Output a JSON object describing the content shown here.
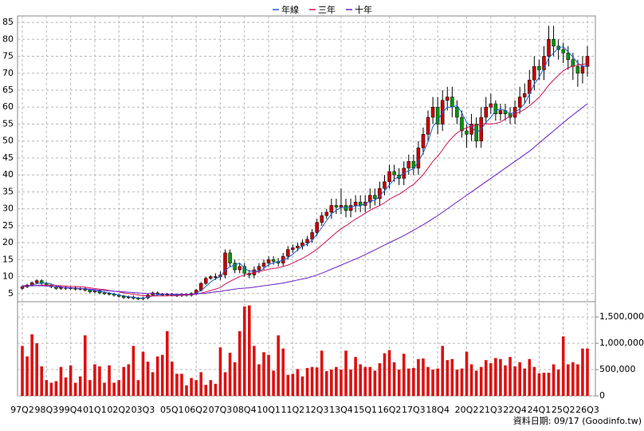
{
  "chart_data": {
    "type": "candlestick",
    "legend": "top",
    "grid": true,
    "up_color": "#cc0000",
    "down_color": "#009900",
    "categories": [
      "97Q2",
      null,
      null,
      null,
      null,
      "98Q3",
      null,
      null,
      null,
      null,
      "99Q4",
      null,
      null,
      null,
      null,
      "01Q1",
      null,
      null,
      null,
      null,
      "02Q2",
      null,
      null,
      null,
      null,
      "03Q3",
      null,
      null,
      null,
      null,
      null,
      "05Q1",
      null,
      null,
      null,
      null,
      "06Q2",
      null,
      null,
      null,
      null,
      "07Q3",
      null,
      null,
      null,
      null,
      "08Q4",
      null,
      null,
      null,
      null,
      "10Q1",
      null,
      null,
      null,
      null,
      "11Q2",
      null,
      null,
      null,
      null,
      "12Q3",
      null,
      null,
      null,
      null,
      "13Q4",
      null,
      null,
      null,
      null,
      "15Q1",
      null,
      null,
      null,
      null,
      "16Q2",
      null,
      null,
      null,
      null,
      "17Q3",
      null,
      null,
      null,
      null,
      "18Q4",
      null,
      null,
      null,
      null,
      null,
      "20Q2",
      null,
      null,
      null,
      null,
      "21Q3",
      null,
      null,
      null,
      null,
      "22Q4",
      null,
      null,
      null,
      null,
      "24Q1",
      null,
      null,
      null,
      null,
      "25Q2",
      null,
      null,
      null,
      null,
      "26Q3"
    ],
    "ohlc": [
      [
        6.5,
        7.4,
        6.1,
        7.0
      ],
      [
        7.0,
        7.9,
        6.6,
        7.5
      ],
      [
        7.5,
        8.6,
        7.1,
        8.2
      ],
      [
        8.2,
        9.2,
        7.8,
        8.8
      ],
      [
        8.8,
        9.2,
        7.6,
        8.0
      ],
      [
        8.0,
        8.4,
        7.1,
        7.5
      ],
      [
        7.5,
        7.9,
        6.6,
        7.0
      ],
      [
        7.0,
        7.4,
        6.1,
        6.5
      ],
      [
        6.5,
        7.2,
        6.1,
        6.8
      ],
      [
        6.8,
        7.2,
        6.1,
        6.5
      ],
      [
        6.5,
        7.1,
        6.1,
        6.7
      ],
      [
        6.7,
        7.1,
        5.9,
        6.3
      ],
      [
        6.3,
        6.9,
        5.9,
        6.5
      ],
      [
        6.5,
        6.9,
        5.6,
        6.0
      ],
      [
        6.0,
        6.4,
        5.1,
        5.5
      ],
      [
        5.5,
        6.2,
        5.1,
        5.8
      ],
      [
        5.8,
        6.2,
        4.8,
        5.2
      ],
      [
        5.2,
        5.6,
        4.6,
        5.0
      ],
      [
        5.0,
        5.4,
        4.4,
        4.8
      ],
      [
        4.8,
        5.2,
        4.1,
        4.5
      ],
      [
        4.5,
        4.9,
        3.8,
        4.2
      ],
      [
        4.2,
        4.6,
        3.4,
        3.8
      ],
      [
        3.8,
        4.4,
        3.4,
        4.0
      ],
      [
        4.0,
        4.4,
        3.2,
        3.6
      ],
      [
        3.6,
        4.0,
        3.1,
        3.5
      ],
      [
        3.5,
        4.1,
        3.1,
        3.7
      ],
      [
        3.7,
        5.0,
        3.3,
        4.6
      ],
      [
        4.6,
        5.6,
        4.2,
        5.2
      ],
      [
        5.2,
        5.6,
        4.4,
        4.8
      ],
      [
        4.8,
        5.2,
        4.2,
        4.6
      ],
      [
        4.6,
        5.2,
        4.2,
        4.8
      ],
      [
        4.8,
        5.2,
        4.1,
        4.5
      ],
      [
        4.5,
        4.9,
        4.0,
        4.4
      ],
      [
        4.4,
        5.1,
        4.0,
        4.7
      ],
      [
        4.7,
        5.1,
        4.1,
        4.5
      ],
      [
        4.5,
        5.4,
        4.1,
        5.0
      ],
      [
        5.0,
        6.4,
        4.6,
        6.0
      ],
      [
        6.0,
        8.4,
        5.6,
        8.0
      ],
      [
        8.0,
        9.9,
        7.6,
        9.5
      ],
      [
        9.5,
        10.4,
        9.1,
        10.0
      ],
      [
        10.0,
        11.0,
        9.0,
        10.0
      ],
      [
        10.0,
        11.5,
        9.0,
        10.5
      ],
      [
        10.5,
        18.0,
        9.5,
        17.0
      ],
      [
        17.0,
        18.0,
        13.0,
        14.0
      ],
      [
        14.0,
        15.0,
        11.0,
        12.0
      ],
      [
        12.0,
        14.0,
        11.0,
        13.0
      ],
      [
        13.0,
        14.0,
        10.0,
        11.0
      ],
      [
        11.0,
        12.0,
        9.5,
        10.5
      ],
      [
        10.5,
        13.0,
        9.5,
        12.0
      ],
      [
        12.0,
        14.0,
        11.0,
        13.0
      ],
      [
        13.0,
        15.0,
        12.0,
        14.0
      ],
      [
        14.0,
        16.0,
        13.0,
        15.0
      ],
      [
        15.0,
        16.0,
        13.5,
        14.5
      ],
      [
        14.5,
        15.5,
        13.0,
        14.0
      ],
      [
        14.0,
        17.0,
        13.0,
        16.0
      ],
      [
        16.0,
        19.0,
        15.0,
        18.0
      ],
      [
        18.0,
        19.5,
        17.0,
        18.5
      ],
      [
        18.5,
        20.0,
        17.5,
        19.0
      ],
      [
        19.0,
        21.0,
        18.0,
        20.0
      ],
      [
        20.0,
        22.0,
        19.0,
        21.0
      ],
      [
        21.0,
        24.0,
        20.0,
        23.0
      ],
      [
        23.0,
        27.0,
        22.0,
        26.0
      ],
      [
        26.0,
        29.0,
        25.0,
        28.0
      ],
      [
        28.0,
        30.0,
        27.0,
        29.0
      ],
      [
        29.0,
        33.0,
        27.0,
        31.0
      ],
      [
        31.0,
        33.0,
        28.5,
        30.5
      ],
      [
        30.5,
        36.0,
        28.5,
        31.0
      ],
      [
        31.0,
        33.0,
        27.5,
        29.5
      ],
      [
        29.5,
        33.0,
        27.5,
        31.0
      ],
      [
        31.0,
        34.0,
        29.0,
        32.0
      ],
      [
        32.0,
        34.0,
        29.0,
        31.0
      ],
      [
        31.0,
        34.0,
        29.0,
        32.0
      ],
      [
        32.0,
        36.0,
        30.0,
        34.0
      ],
      [
        34.0,
        36.0,
        31.0,
        33.0
      ],
      [
        33.0,
        38.0,
        31.0,
        36.0
      ],
      [
        36.0,
        40.0,
        34.0,
        38.0
      ],
      [
        38.0,
        43.0,
        36.0,
        41.0
      ],
      [
        41.0,
        43.0,
        38.0,
        40.0
      ],
      [
        40.0,
        42.0,
        37.0,
        39.0
      ],
      [
        39.0,
        44.0,
        37.0,
        42.0
      ],
      [
        42.0,
        46.0,
        40.0,
        44.0
      ],
      [
        44.0,
        46.0,
        40.0,
        42.0
      ],
      [
        42.0,
        50.0,
        40.0,
        48.0
      ],
      [
        48.0,
        54.0,
        46.0,
        52.0
      ],
      [
        52.0,
        59.0,
        50.0,
        57.0
      ],
      [
        57.0,
        63.0,
        55.0,
        60.0
      ],
      [
        60.0,
        63.0,
        52.0,
        55.0
      ],
      [
        55.0,
        65.0,
        53.0,
        62.0
      ],
      [
        62.0,
        66.0,
        59.0,
        63.0
      ],
      [
        63.0,
        66.0,
        57.0,
        60.0
      ],
      [
        60.0,
        62.0,
        55.0,
        57.0
      ],
      [
        57.0,
        59.0,
        51.0,
        53.0
      ],
      [
        53.0,
        55.0,
        48.0,
        52.0
      ],
      [
        52.0,
        58.0,
        50.0,
        55.0
      ],
      [
        55.0,
        57.0,
        48.0,
        50.0
      ],
      [
        50.0,
        60.0,
        48.0,
        57.0
      ],
      [
        57.0,
        63.0,
        55.0,
        60.0
      ],
      [
        60.0,
        64.0,
        58.0,
        61.0
      ],
      [
        61.0,
        62.0,
        56.0,
        58.0
      ],
      [
        58.0,
        61.0,
        56.0,
        59.0
      ],
      [
        59.0,
        61.0,
        56.0,
        58.0
      ],
      [
        58.0,
        60.0,
        55.0,
        57.0
      ],
      [
        57.0,
        62.0,
        55.0,
        60.0
      ],
      [
        60.0,
        66.0,
        58.0,
        63.0
      ],
      [
        63.0,
        67.0,
        61.0,
        64.0
      ],
      [
        64.0,
        71.0,
        61.0,
        68.0
      ],
      [
        68.0,
        75.0,
        65.0,
        72.0
      ],
      [
        72.0,
        74.0,
        68.0,
        71.0
      ],
      [
        71.0,
        78.0,
        68.0,
        75.0
      ],
      [
        75.0,
        84.0,
        72.0,
        80.0
      ],
      [
        80.0,
        84.0,
        75.0,
        78.0
      ],
      [
        78.0,
        80.0,
        74.0,
        77.0
      ],
      [
        77.0,
        79.0,
        73.0,
        76.0
      ],
      [
        76.0,
        78.0,
        71.0,
        74.0
      ],
      [
        74.0,
        76.0,
        68.0,
        72.0
      ],
      [
        72.0,
        74.0,
        66.0,
        70.0
      ],
      [
        70.0,
        75.0,
        67.0,
        72.0
      ],
      [
        72.0,
        78.0,
        69.0,
        75.0
      ]
    ],
    "series": [
      {
        "name": "年線",
        "color": "#1f5fd0",
        "values": [
          7.0,
          7.2,
          7.5,
          7.9,
          8.1,
          8.1,
          7.8,
          7.3,
          7.0,
          6.7,
          6.6,
          6.6,
          6.5,
          6.4,
          6.1,
          5.9,
          5.6,
          5.4,
          5.2,
          4.9,
          4.6,
          4.3,
          4.1,
          3.9,
          3.7,
          3.7,
          3.9,
          4.3,
          4.6,
          4.8,
          4.9,
          4.7,
          4.6,
          4.6,
          4.5,
          4.7,
          5.1,
          5.9,
          7.1,
          8.4,
          9.4,
          10.0,
          11.9,
          12.9,
          13.4,
          14.0,
          12.5,
          11.6,
          11.6,
          11.6,
          12.4,
          13.5,
          14.1,
          14.4,
          14.9,
          15.6,
          16.6,
          17.9,
          19.0,
          19.6,
          20.8,
          22.5,
          24.5,
          26.5,
          28.5,
          29.6,
          30.4,
          30.5,
          30.5,
          30.9,
          30.9,
          31.5,
          32.3,
          32.5,
          33.8,
          35.3,
          37.0,
          38.8,
          39.5,
          40.5,
          41.3,
          41.8,
          44.0,
          46.5,
          49.8,
          54.3,
          56.0,
          58.5,
          60.0,
          60.0,
          60.5,
          58.3,
          55.5,
          54.3,
          52.5,
          53.5,
          55.5,
          57.0,
          59.0,
          59.5,
          59.0,
          58.0,
          58.5,
          59.5,
          61.0,
          63.8,
          66.8,
          68.8,
          71.5,
          74.5,
          76.0,
          77.5,
          77.8,
          76.3,
          74.8,
          73.0,
          72.0,
          72.3
        ]
      },
      {
        "name": "三年",
        "color": "#d0105a",
        "values": [
          7.2,
          7.2,
          7.3,
          7.4,
          7.5,
          7.5,
          7.5,
          7.4,
          7.3,
          7.2,
          7.1,
          7.1,
          7.0,
          6.9,
          6.7,
          6.5,
          6.3,
          6.2,
          5.9,
          5.7,
          5.5,
          5.2,
          5.0,
          4.8,
          4.6,
          4.4,
          4.3,
          4.3,
          4.3,
          4.3,
          4.3,
          4.4,
          4.4,
          4.5,
          4.6,
          4.7,
          4.8,
          5.1,
          5.5,
          5.9,
          6.3,
          6.8,
          7.8,
          8.6,
          9.3,
          10.0,
          10.5,
          10.9,
          11.2,
          11.5,
          11.8,
          12.2,
          12.4,
          12.6,
          13.0,
          13.4,
          14.0,
          14.7,
          15.4,
          16.2,
          17.1,
          18.1,
          19.3,
          20.5,
          21.8,
          23.0,
          24.1,
          25.0,
          26.0,
          27.0,
          27.8,
          28.7,
          29.6,
          30.3,
          31.0,
          31.8,
          32.8,
          33.6,
          34.3,
          35.2,
          36.3,
          37.2,
          38.6,
          40.1,
          42.0,
          44.0,
          45.5,
          47.4,
          49.4,
          51.0,
          52.4,
          53.3,
          53.9,
          54.5,
          54.6,
          55.0,
          55.1,
          55.0,
          55.2,
          55.6,
          56.5,
          57.3,
          58.0,
          58.6,
          59.3,
          60.4,
          61.6,
          62.9,
          64.6,
          66.5,
          68.0,
          69.4,
          70.7,
          71.6,
          72.1,
          72.4,
          72.6,
          72.9
        ]
      },
      {
        "name": "十年",
        "color": "#6a1fc8",
        "values": [
          7.3,
          7.3,
          7.3,
          7.3,
          7.3,
          7.2,
          7.1,
          7.0,
          6.9,
          6.8,
          6.7,
          6.6,
          6.5,
          6.4,
          6.3,
          6.2,
          6.0,
          5.9,
          5.8,
          5.7,
          5.6,
          5.5,
          5.4,
          5.3,
          5.2,
          5.1,
          5.0,
          5.0,
          4.9,
          4.9,
          4.8,
          4.8,
          4.8,
          4.8,
          4.8,
          4.8,
          4.9,
          5.0,
          5.1,
          5.3,
          5.5,
          5.6,
          5.9,
          6.1,
          6.3,
          6.5,
          6.6,
          6.7,
          6.9,
          7.1,
          7.3,
          7.5,
          7.7,
          7.9,
          8.1,
          8.4,
          8.7,
          9.0,
          9.3,
          9.6,
          10.0,
          10.5,
          11.0,
          11.6,
          12.2,
          12.8,
          13.4,
          14.0,
          14.6,
          15.2,
          15.8,
          16.5,
          17.2,
          17.9,
          18.6,
          19.3,
          20.0,
          20.7,
          21.4,
          22.1,
          22.9,
          23.7,
          24.5,
          25.3,
          26.2,
          27.1,
          28.0,
          29.0,
          30.0,
          31.0,
          32.0,
          33.0,
          34.0,
          35.0,
          36.0,
          37.0,
          38.0,
          39.0,
          40.0,
          41.0,
          42.0,
          43.0,
          44.0,
          45.0,
          46.0,
          47.0,
          48.2,
          49.4,
          50.6,
          51.8,
          53.0,
          54.2,
          55.4,
          56.6,
          57.7,
          58.8,
          59.9,
          61.0
        ]
      }
    ],
    "ylim": [
      2.6,
      86.9
    ],
    "yticks": [
      5,
      10,
      15,
      20,
      25,
      30,
      35,
      40,
      45,
      50,
      55,
      60,
      65,
      70,
      75,
      80,
      85
    ],
    "volume": {
      "color": "#dd1111",
      "values": [
        950000,
        750000,
        1170000,
        1000000,
        560000,
        300000,
        250000,
        280000,
        550000,
        350000,
        580000,
        250000,
        370000,
        1150000,
        300000,
        600000,
        560000,
        250000,
        580000,
        250000,
        300000,
        550000,
        600000,
        950000,
        300000,
        840000,
        650000,
        450000,
        750000,
        780000,
        1230000,
        650000,
        420000,
        420000,
        200000,
        340000,
        300000,
        450000,
        210000,
        300000,
        230000,
        920000,
        450000,
        820000,
        640000,
        1230000,
        1700000,
        1720000,
        950000,
        600000,
        830000,
        780000,
        480000,
        1150000,
        900000,
        400000,
        420000,
        510000,
        370000,
        530000,
        550000,
        540000,
        860000,
        470000,
        500000,
        550000,
        500000,
        860000,
        500000,
        740000,
        600000,
        550000,
        550000,
        480000,
        620000,
        810000,
        870000,
        640000,
        500000,
        800000,
        520000,
        530000,
        700000,
        710000,
        550000,
        500000,
        520000,
        950000,
        680000,
        700000,
        500000,
        520000,
        840000,
        600000,
        480000,
        550000,
        680000,
        620000,
        720000,
        700000,
        580000,
        740000,
        560000,
        640000,
        520000,
        700000,
        550000,
        430000,
        440000,
        440000,
        600000,
        500000,
        1130000,
        600000,
        640000,
        600000,
        900000,
        900000
      ],
      "ylim": [
        0,
        1790000
      ],
      "yticks": [
        0,
        {
          "value": 500000,
          "label": "500,000"
        },
        {
          "value": 1000000,
          "label": "1,000,000"
        },
        {
          "value": 1500000,
          "label": "1,500,000"
        }
      ]
    },
    "footer": "資料日期: 09/17 (Goodinfo.tw)"
  }
}
